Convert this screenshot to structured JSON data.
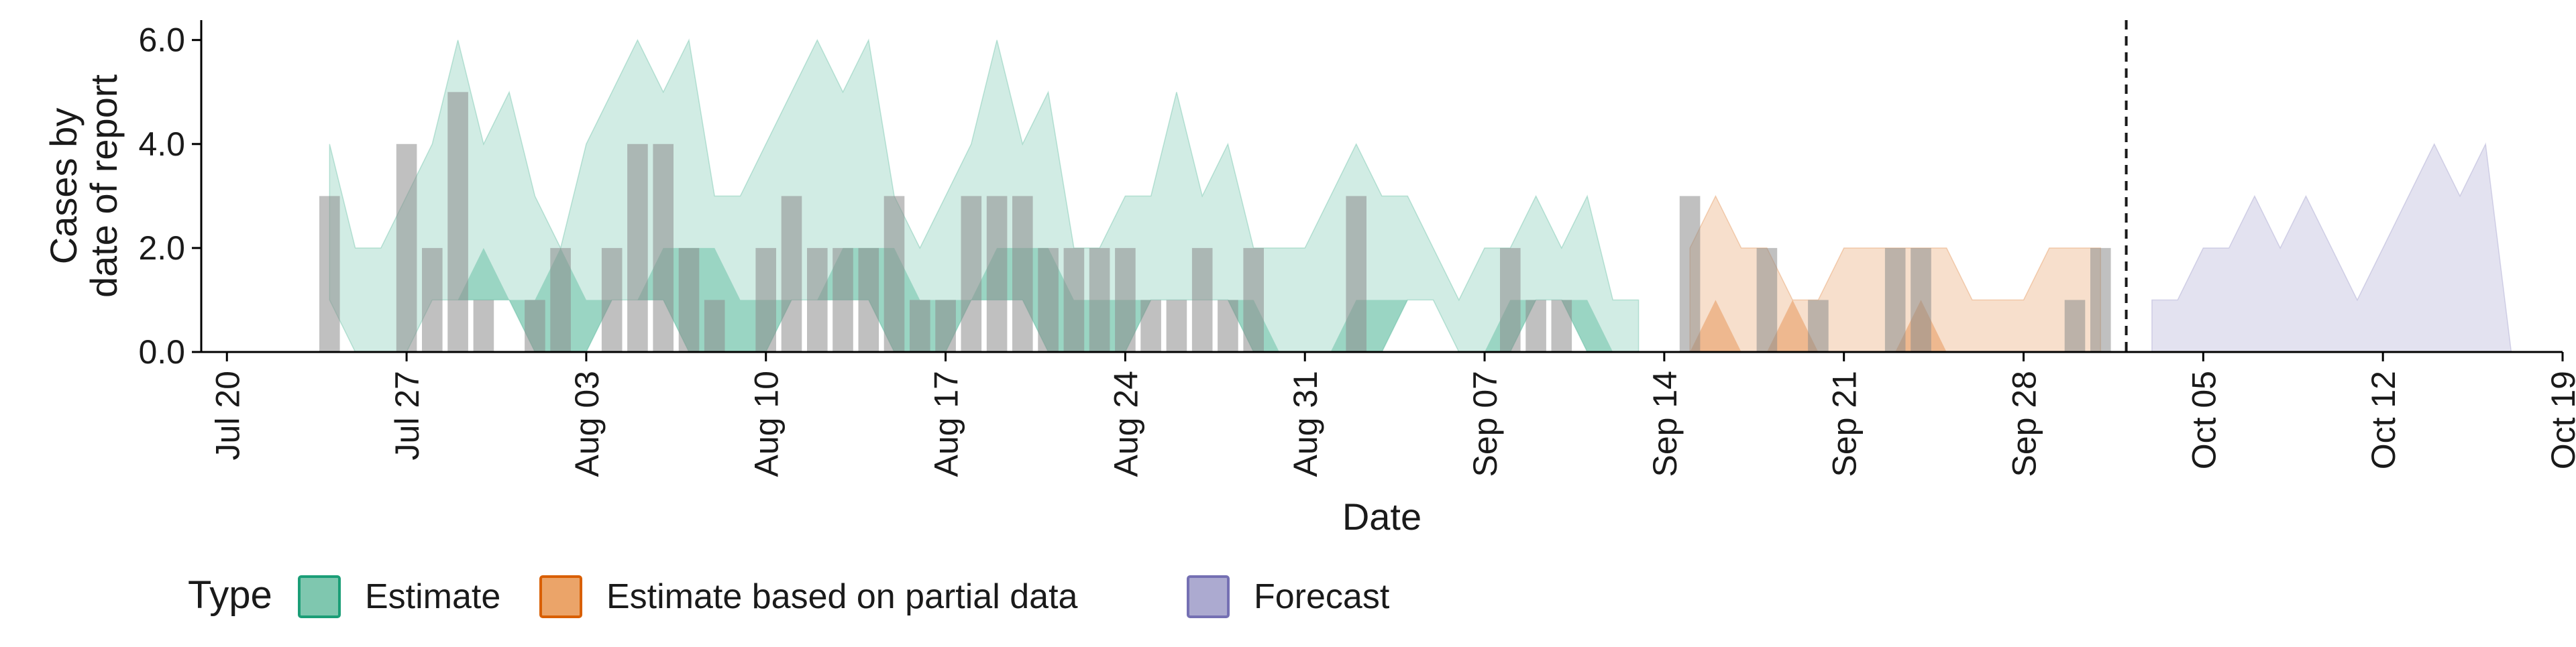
{
  "chart_data": {
    "type": "area",
    "xlabel": "Date",
    "ylabel": [
      "Cases by",
      "date of report"
    ],
    "x_range": [
      "2020-07-19",
      "2020-10-19"
    ],
    "ylim": [
      0,
      6
    ],
    "y_ticks": [
      0,
      2,
      4,
      6
    ],
    "y_tick_labels": [
      "0.0",
      "2.0",
      "4.0",
      "6.0"
    ],
    "x_ticks": [
      {
        "date": "2020-07-20",
        "label": "Jul 20"
      },
      {
        "date": "2020-07-27",
        "label": "Jul 27"
      },
      {
        "date": "2020-08-03",
        "label": "Aug 03"
      },
      {
        "date": "2020-08-10",
        "label": "Aug 10"
      },
      {
        "date": "2020-08-17",
        "label": "Aug 17"
      },
      {
        "date": "2020-08-24",
        "label": "Aug 24"
      },
      {
        "date": "2020-08-31",
        "label": "Aug 31"
      },
      {
        "date": "2020-09-07",
        "label": "Sep 07"
      },
      {
        "date": "2020-09-14",
        "label": "Sep 14"
      },
      {
        "date": "2020-09-21",
        "label": "Sep 21"
      },
      {
        "date": "2020-09-28",
        "label": "Sep 28"
      },
      {
        "date": "2020-10-05",
        "label": "Oct 05"
      },
      {
        "date": "2020-10-12",
        "label": "Oct 12"
      },
      {
        "date": "2020-10-19",
        "label": "Oct 19"
      }
    ],
    "grid": false,
    "legend": {
      "title": "Type",
      "placement": "bottom",
      "items": [
        {
          "key": "estimate",
          "label": "Estimate",
          "fill": "#7FC7AF",
          "stroke": "#1B9E77"
        },
        {
          "key": "partial",
          "label": "Estimate based on partial data",
          "fill": "#EBA469",
          "stroke": "#D95F02"
        },
        {
          "key": "forecast",
          "label": "Forecast",
          "fill": "#ACAAD0",
          "stroke": "#7570B3"
        }
      ]
    },
    "colors": {
      "estimate": "#1B9E77",
      "partial": "#D95F02",
      "forecast": "#7570B3",
      "bars": "#8C8C8C",
      "vline": "#1a1a1a"
    },
    "forecast_date": "2020-10-02",
    "series": [
      {
        "key": "estimate",
        "dates": [
          "2020-07-24",
          "2020-07-25",
          "2020-07-26",
          "2020-07-27",
          "2020-07-28",
          "2020-07-29",
          "2020-07-30",
          "2020-07-31",
          "2020-08-01",
          "2020-08-02",
          "2020-08-03",
          "2020-08-04",
          "2020-08-05",
          "2020-08-06",
          "2020-08-07",
          "2020-08-08",
          "2020-08-09",
          "2020-08-10",
          "2020-08-11",
          "2020-08-12",
          "2020-08-13",
          "2020-08-14",
          "2020-08-15",
          "2020-08-16",
          "2020-08-17",
          "2020-08-18",
          "2020-08-19",
          "2020-08-20",
          "2020-08-21",
          "2020-08-22",
          "2020-08-23",
          "2020-08-24",
          "2020-08-25",
          "2020-08-26",
          "2020-08-27",
          "2020-08-28",
          "2020-08-29",
          "2020-08-30",
          "2020-08-31",
          "2020-09-01",
          "2020-09-02",
          "2020-09-03",
          "2020-09-04",
          "2020-09-05",
          "2020-09-06",
          "2020-09-07",
          "2020-09-08",
          "2020-09-09",
          "2020-09-10",
          "2020-09-11",
          "2020-09-12",
          "2020-09-13"
        ],
        "lower": [
          1,
          0,
          0,
          0,
          1,
          1,
          1,
          1,
          0,
          0,
          0,
          1,
          1,
          1,
          0,
          0,
          0,
          0,
          1,
          1,
          1,
          1,
          0,
          0,
          0,
          1,
          1,
          1,
          0,
          0,
          0,
          0,
          1,
          1,
          1,
          1,
          0,
          0,
          0,
          0,
          0,
          0,
          1,
          1,
          0,
          0,
          0,
          1,
          1,
          0,
          0,
          0
        ],
        "inner_upper": [
          1,
          0,
          0,
          0,
          1,
          1,
          2,
          1,
          1,
          2,
          1,
          1,
          1,
          2,
          2,
          2,
          1,
          1,
          1,
          1,
          2,
          2,
          2,
          1,
          1,
          1,
          2,
          2,
          2,
          1,
          1,
          1,
          1,
          1,
          1,
          1,
          1,
          0,
          0,
          0,
          1,
          1,
          1,
          1,
          0,
          0,
          1,
          1,
          1,
          1,
          0,
          0
        ],
        "upper": [
          4,
          2,
          2,
          3,
          4,
          6,
          4,
          5,
          3,
          2,
          4,
          5,
          6,
          5,
          6,
          3,
          3,
          4,
          5,
          6,
          5,
          6,
          3,
          2,
          3,
          4,
          6,
          4,
          5,
          2,
          2,
          3,
          3,
          5,
          3,
          4,
          2,
          2,
          2,
          3,
          4,
          3,
          3,
          2,
          1,
          2,
          2,
          3,
          2,
          3,
          1,
          1
        ]
      },
      {
        "key": "partial",
        "dates": [
          "2020-09-15",
          "2020-09-16",
          "2020-09-17",
          "2020-09-18",
          "2020-09-19",
          "2020-09-20",
          "2020-09-21",
          "2020-09-22",
          "2020-09-23",
          "2020-09-24",
          "2020-09-25",
          "2020-09-26",
          "2020-09-27",
          "2020-09-28",
          "2020-09-29",
          "2020-09-30",
          "2020-10-01"
        ],
        "lower": [
          0,
          0,
          0,
          0,
          0,
          0,
          0,
          0,
          0,
          0,
          0,
          0,
          0,
          0,
          0,
          0,
          0
        ],
        "inner_upper": [
          0,
          1,
          0,
          0,
          1,
          0,
          0,
          0,
          0,
          1,
          0,
          0,
          0,
          0,
          0,
          0,
          0
        ],
        "upper": [
          2,
          3,
          2,
          2,
          1,
          1,
          2,
          2,
          2,
          2,
          2,
          1,
          1,
          1,
          2,
          2,
          2
        ]
      },
      {
        "key": "forecast",
        "dates": [
          "2020-10-03",
          "2020-10-04",
          "2020-10-05",
          "2020-10-06",
          "2020-10-07",
          "2020-10-08",
          "2020-10-09",
          "2020-10-10",
          "2020-10-11",
          "2020-10-12",
          "2020-10-13",
          "2020-10-14",
          "2020-10-15",
          "2020-10-16",
          "2020-10-17"
        ],
        "lower": [
          0,
          0,
          0,
          0,
          0,
          0,
          0,
          0,
          0,
          0,
          0,
          0,
          0,
          0,
          0
        ],
        "upper": [
          1,
          1,
          2,
          2,
          3,
          2,
          3,
          2,
          1,
          2,
          3,
          4,
          3,
          4,
          0
        ]
      }
    ],
    "bars": {
      "dates": [
        "2020-07-24",
        "2020-07-27",
        "2020-07-28",
        "2020-07-29",
        "2020-07-30",
        "2020-08-01",
        "2020-08-02",
        "2020-08-04",
        "2020-08-05",
        "2020-08-06",
        "2020-08-07",
        "2020-08-08",
        "2020-08-10",
        "2020-08-11",
        "2020-08-12",
        "2020-08-13",
        "2020-08-14",
        "2020-08-15",
        "2020-08-16",
        "2020-08-17",
        "2020-08-18",
        "2020-08-19",
        "2020-08-20",
        "2020-08-21",
        "2020-08-22",
        "2020-08-23",
        "2020-08-24",
        "2020-08-25",
        "2020-08-26",
        "2020-08-27",
        "2020-08-28",
        "2020-08-29",
        "2020-09-02",
        "2020-09-08",
        "2020-09-09",
        "2020-09-10",
        "2020-09-15",
        "2020-09-18",
        "2020-09-20",
        "2020-09-23",
        "2020-09-24",
        "2020-09-30",
        "2020-10-01"
      ],
      "values": [
        3,
        4,
        2,
        5,
        1,
        1,
        2,
        2,
        4,
        4,
        2,
        1,
        2,
        3,
        2,
        2,
        2,
        3,
        1,
        1,
        3,
        3,
        3,
        2,
        2,
        2,
        2,
        1,
        1,
        2,
        1,
        2,
        3,
        2,
        1,
        1,
        3,
        2,
        1,
        2,
        2,
        1,
        2
      ]
    }
  }
}
